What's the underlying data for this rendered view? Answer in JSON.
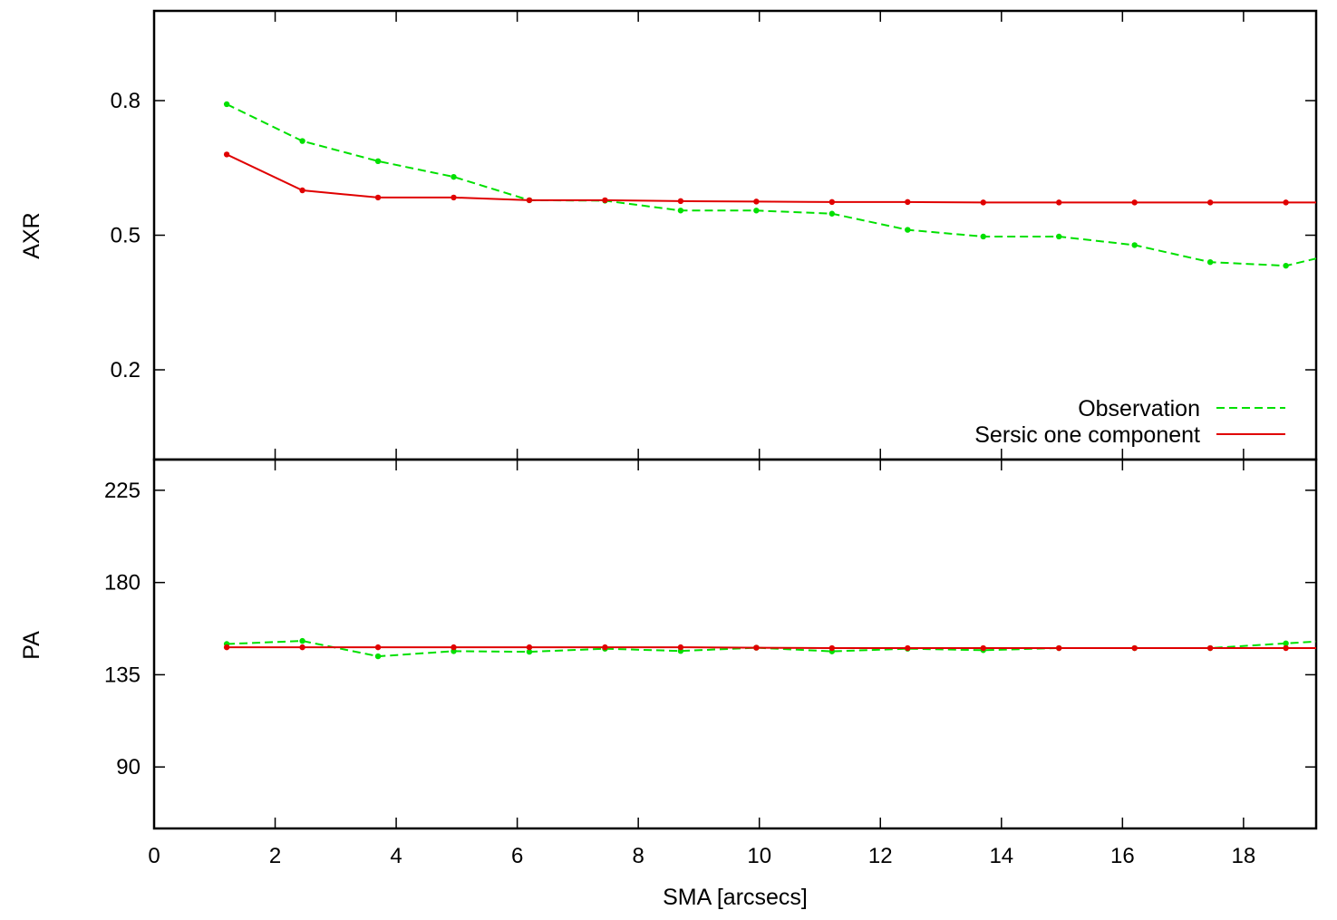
{
  "chart_data": [
    {
      "type": "line",
      "ylabel": "AXR",
      "ylim": [
        0.0,
        1.0
      ],
      "yticks": [
        0.2,
        0.5,
        0.8
      ],
      "ytick_labels": [
        "0.2",
        "0.5",
        "0.8"
      ],
      "xlim": [
        0,
        19.2
      ],
      "legend": {
        "placement": "bottom-right"
      },
      "series": [
        {
          "name": "Observation",
          "color": "#00e000",
          "style": "dashed",
          "x": [
            1.2,
            2.45,
            3.7,
            4.95,
            6.2,
            7.45,
            8.7,
            9.95,
            11.2,
            12.45,
            13.7,
            14.95,
            16.2,
            17.45,
            18.7,
            19.2
          ],
          "y": [
            0.792,
            0.71,
            0.665,
            0.63,
            0.578,
            0.577,
            0.555,
            0.555,
            0.548,
            0.512,
            0.497,
            0.497,
            0.478,
            0.44,
            0.432,
            0.448
          ]
        },
        {
          "name": "Sersic one component",
          "color": "#e00000",
          "style": "solid",
          "x": [
            1.2,
            2.45,
            3.7,
            4.95,
            6.2,
            7.45,
            8.7,
            9.95,
            11.2,
            12.45,
            13.7,
            14.95,
            16.2,
            17.45,
            18.7,
            19.2
          ],
          "y": [
            0.68,
            0.6,
            0.584,
            0.584,
            0.578,
            0.578,
            0.576,
            0.575,
            0.574,
            0.574,
            0.573,
            0.573,
            0.573,
            0.573,
            0.573,
            0.573
          ]
        }
      ]
    },
    {
      "type": "line",
      "ylabel": "PA",
      "xlabel": "SMA [arcsecs]",
      "ylim": [
        60,
        240
      ],
      "yticks": [
        90,
        135,
        180,
        225
      ],
      "ytick_labels": [
        "90",
        "135",
        "180",
        "225"
      ],
      "xlim": [
        0,
        19.2
      ],
      "xticks": [
        0,
        2,
        4,
        6,
        8,
        10,
        12,
        14,
        16,
        18
      ],
      "xtick_labels": [
        "0",
        "2",
        "4",
        "6",
        "8",
        "10",
        "12",
        "14",
        "16",
        "18"
      ],
      "series": [
        {
          "name": "Observation",
          "color": "#00e000",
          "style": "dashed",
          "x": [
            1.2,
            2.45,
            3.7,
            4.95,
            6.2,
            7.45,
            8.7,
            9.95,
            11.2,
            12.45,
            13.7,
            14.95,
            16.2,
            17.45,
            18.7,
            19.2
          ],
          "y": [
            150.0,
            151.5,
            144.0,
            146.5,
            146.2,
            147.7,
            146.6,
            148.2,
            146.4,
            147.7,
            147.0,
            148.0,
            148.0,
            148.0,
            150.3,
            151.2
          ]
        },
        {
          "name": "Sersic one component",
          "color": "#e00000",
          "style": "solid",
          "x": [
            1.2,
            2.45,
            3.7,
            4.95,
            6.2,
            7.45,
            8.7,
            9.95,
            11.2,
            12.45,
            13.7,
            14.95,
            16.2,
            17.45,
            18.7,
            19.2
          ],
          "y": [
            148.4,
            148.4,
            148.4,
            148.4,
            148.4,
            148.4,
            148.4,
            148.2,
            148.0,
            148.0,
            148.0,
            148.0,
            148.0,
            148.0,
            148.0,
            148.0
          ]
        }
      ]
    }
  ]
}
